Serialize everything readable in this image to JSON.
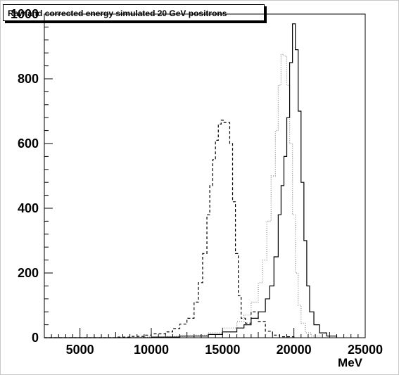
{
  "title": "Raw and corrected energy simulated 20 GeV positrons",
  "chart_data": {
    "type": "line",
    "title": "Raw and corrected energy simulated 20 GeV positrons",
    "xlabel": "MeV",
    "ylabel": "",
    "xlim": [
      2500,
      25000
    ],
    "ylim": [
      0,
      1000
    ],
    "x_ticks": [
      5000,
      10000,
      15000,
      20000,
      25000
    ],
    "y_ticks": [
      0,
      200,
      400,
      600,
      800,
      1000
    ],
    "x_tick_labels": [
      "5000",
      "10000",
      "15000",
      "20000",
      "25000"
    ],
    "y_tick_labels": [
      "0",
      "200",
      "400",
      "600",
      "800",
      "1000"
    ],
    "grid": false,
    "legend": "none",
    "series": [
      {
        "style": "dashed",
        "color": "#000000",
        "x": [
          2500,
          7500,
          8500,
          9500,
          10000,
          11000,
          11500,
          12000,
          12500,
          13000,
          13300,
          13600,
          13900,
          14100,
          14300,
          14500,
          14700,
          14900,
          15100,
          15300,
          15500,
          15700,
          15900,
          16100,
          16300,
          16600,
          17000,
          17500,
          18000,
          18500,
          19000,
          20000
        ],
        "y": [
          0,
          2,
          4,
          8,
          12,
          18,
          28,
          42,
          60,
          110,
          170,
          260,
          380,
          470,
          550,
          610,
          660,
          672,
          665,
          665,
          600,
          420,
          260,
          130,
          60,
          45,
          80,
          50,
          20,
          8,
          3,
          0
        ]
      },
      {
        "style": "dotted",
        "color": "#888888",
        "x": [
          2500,
          9000,
          11000,
          13000,
          14000,
          15000,
          16000,
          16500,
          17000,
          17500,
          17800,
          18100,
          18400,
          18700,
          18900,
          19100,
          19300,
          19500,
          19700,
          19900,
          20100,
          20300,
          20500,
          20800,
          21200,
          22000
        ],
        "y": [
          0,
          2,
          4,
          8,
          15,
          30,
          50,
          70,
          110,
          170,
          240,
          360,
          500,
          640,
          780,
          875,
          870,
          780,
          600,
          380,
          200,
          100,
          45,
          15,
          5,
          0
        ]
      },
      {
        "style": "solid",
        "color": "#000000",
        "x": [
          2500,
          10000,
          12000,
          14000,
          15000,
          16000,
          16500,
          17000,
          17500,
          18000,
          18300,
          18600,
          18900,
          19100,
          19300,
          19500,
          19700,
          19900,
          20100,
          20300,
          20500,
          20700,
          20900,
          21100,
          21400,
          21800,
          22300,
          23000
        ],
        "y": [
          0,
          2,
          5,
          10,
          18,
          30,
          40,
          60,
          80,
          120,
          160,
          250,
          380,
          470,
          560,
          680,
          850,
          970,
          890,
          700,
          480,
          300,
          160,
          80,
          40,
          15,
          5,
          0
        ]
      }
    ]
  }
}
